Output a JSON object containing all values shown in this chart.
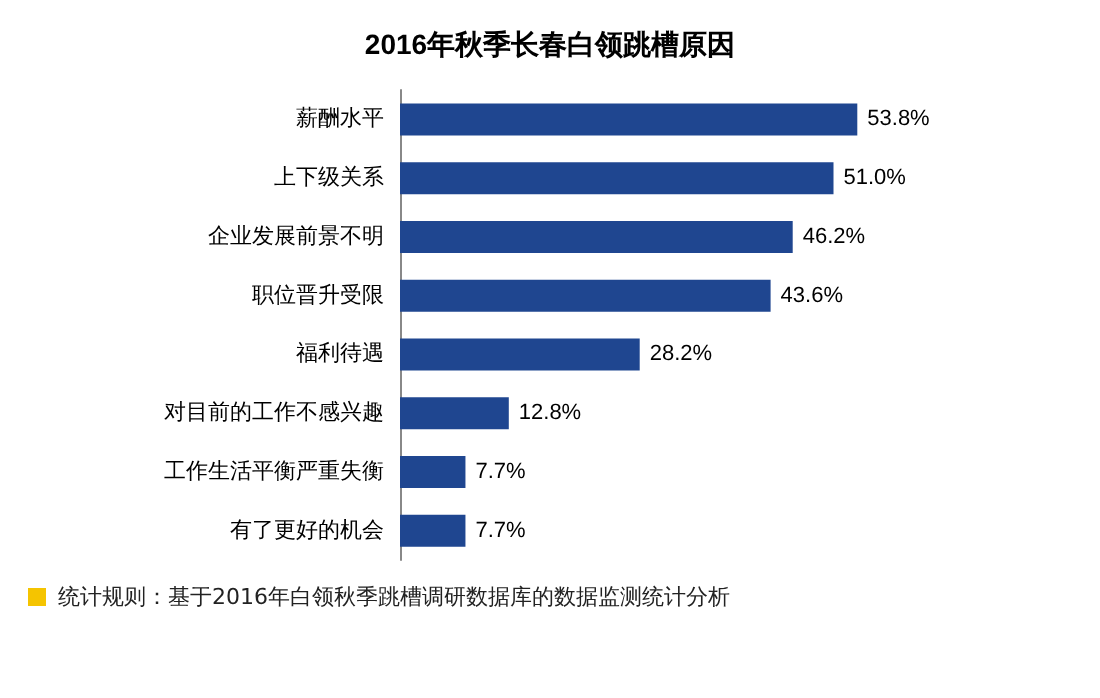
{
  "chart_data": {
    "type": "bar",
    "orientation": "horizontal",
    "title": "2016年秋季长春白领跳槽原因",
    "categories": [
      "薪酬水平",
      "上下级关系",
      "企业发展前景不明",
      "职位晋升受限",
      "福利待遇",
      "对目前的工作不感兴趣",
      "工作生活平衡严重失衡",
      "有了更好的机会"
    ],
    "values": [
      53.8,
      51.0,
      46.2,
      43.6,
      28.2,
      12.8,
      7.7,
      7.7
    ],
    "value_labels": [
      "53.8%",
      "51.0%",
      "46.2%",
      "43.6%",
      "28.2%",
      "12.8%",
      "7.7%",
      "7.7%"
    ],
    "color": "#1f4690",
    "grid": false,
    "annotations": [
      "统计规则：基于2016年白领秋季跳槽调研数据库的数据监测统计分析"
    ]
  }
}
